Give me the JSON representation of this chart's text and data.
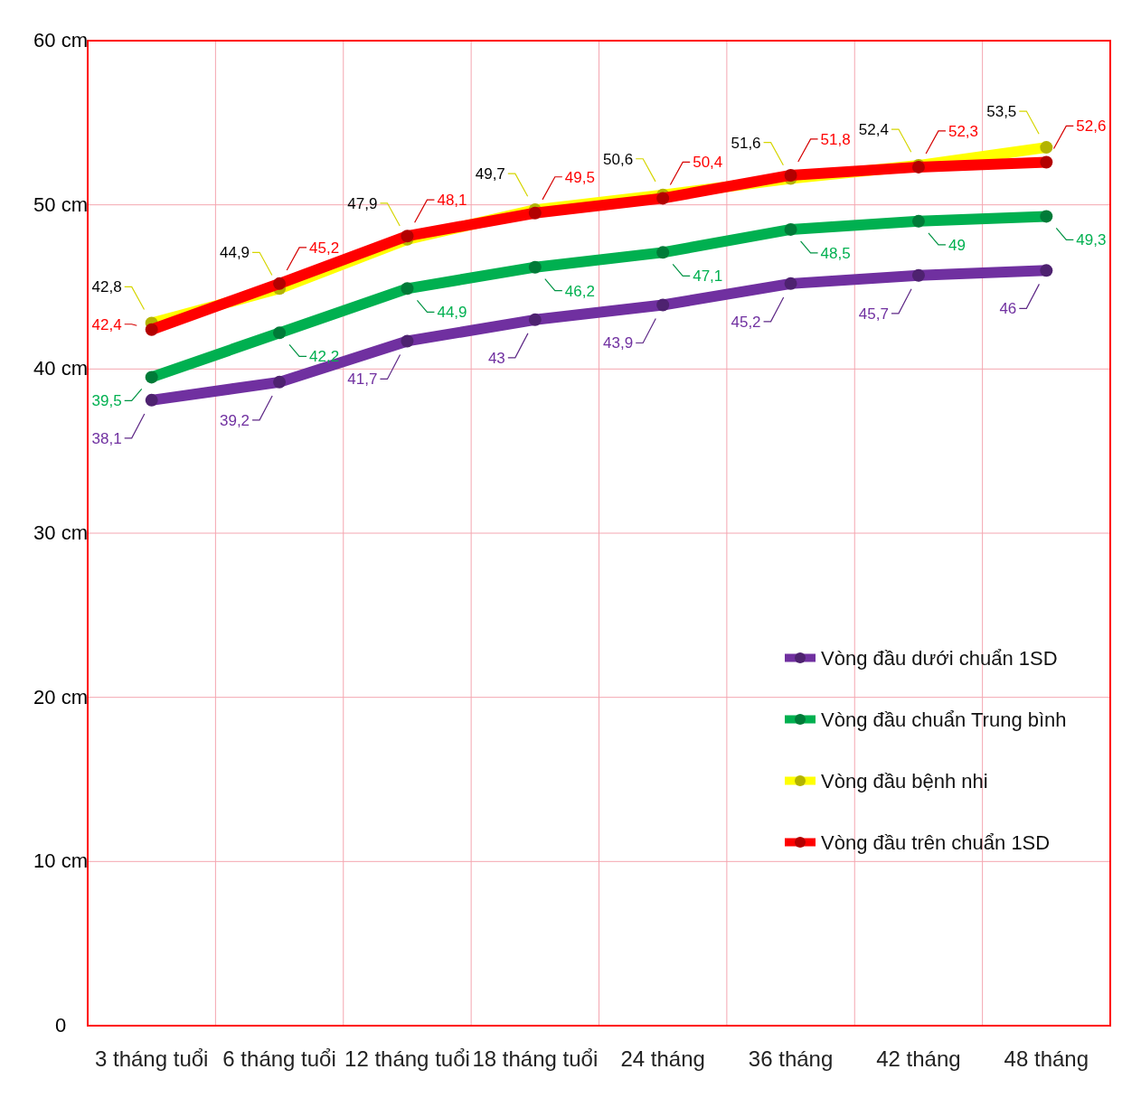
{
  "chart_data": {
    "type": "line",
    "categories": [
      "3 tháng tuổi",
      "6 tháng tuổi",
      "12 tháng tuổi",
      "18 tháng tuổi",
      "24 tháng",
      "36 tháng",
      "42 tháng",
      "48 tháng"
    ],
    "ylim": [
      0,
      60
    ],
    "yticks": [
      0,
      {
        "value": 10,
        "label": "10 cm"
      },
      {
        "value": 20,
        "label": "20 cm"
      },
      {
        "value": 30,
        "label": "30 cm"
      },
      {
        "value": 40,
        "label": "40 cm"
      },
      {
        "value": 50,
        "label": "50 cm"
      },
      {
        "value": 60,
        "label": "60 cm"
      }
    ],
    "grid": true,
    "legend": "bottom right",
    "marker": "circle",
    "line_style": "solid",
    "series": [
      {
        "name": "Vòng đầu dưới chuẩn 1SD",
        "color": "#7030a0",
        "values": [
          38.1,
          39.2,
          41.7,
          43,
          43.9,
          45.2,
          45.7,
          46
        ],
        "value_labels": [
          "38,1",
          "39,2",
          "41,7",
          "43",
          "43,9",
          "45,2",
          "45,7",
          "46"
        ]
      },
      {
        "name": "Vòng đầu chuẩn Trung bình",
        "color": "#00b050",
        "values": [
          39.5,
          42.2,
          44.9,
          46.2,
          47.1,
          48.5,
          49,
          49.3
        ],
        "value_labels": [
          "39,5",
          "42,2",
          "44,9",
          "46,2",
          "47,1",
          "48,5",
          "49",
          "49,3"
        ]
      },
      {
        "name": "Vòng đầu bệnh nhi",
        "color": "#ffff00",
        "values": [
          42.8,
          44.9,
          47.9,
          49.7,
          50.6,
          51.6,
          52.4,
          53.5
        ],
        "value_labels": [
          "42,8",
          "44,9",
          "47,9",
          "49,7",
          "50,6",
          "51,6",
          "52,4",
          "53,5"
        ]
      },
      {
        "name": "Vòng đầu trên chuẩn 1SD",
        "color": "#ff0000",
        "values": [
          42.4,
          45.2,
          48.1,
          49.5,
          50.4,
          51.8,
          52.3,
          52.6
        ],
        "value_labels": [
          "42,4",
          "45,2",
          "48,1",
          "49,5",
          "50,4",
          "51,8",
          "52,3",
          "52,6"
        ]
      }
    ]
  }
}
